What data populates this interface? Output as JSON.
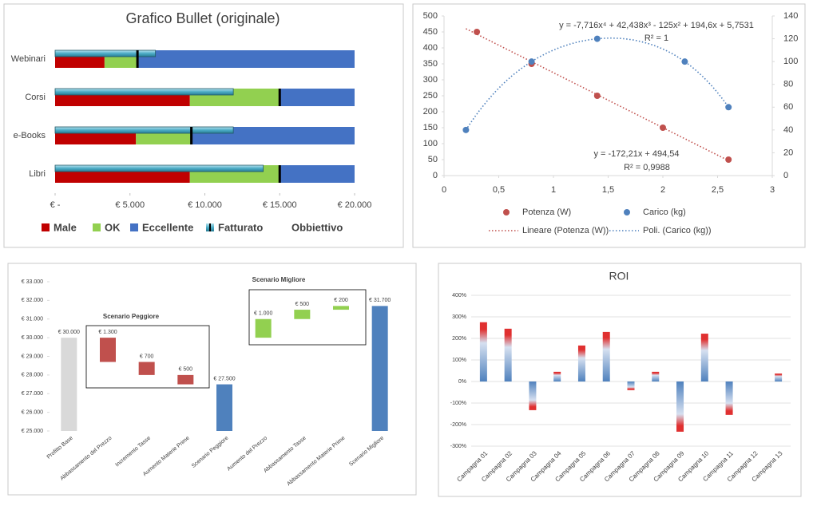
{
  "chart_data": [
    {
      "type": "bullet",
      "title": "Grafico Bullet (originale)",
      "categories": [
        "Webinari",
        "Corsi",
        "e-Books",
        "Libri"
      ],
      "series": [
        {
          "name": "Male",
          "color": "#c00000",
          "values": [
            3300,
            9000,
            5400,
            9000
          ]
        },
        {
          "name": "OK",
          "color": "#92d050",
          "values": [
            2200,
            6000,
            3700,
            6000
          ]
        },
        {
          "name": "Eccellente",
          "color": "#4472c4",
          "values": [
            14500,
            5000,
            10900,
            5000
          ]
        },
        {
          "name": "Fatturato",
          "color": "#4bacc6",
          "values": [
            6700,
            11900,
            11900,
            13900
          ]
        },
        {
          "name": "Obbiettivo",
          "color": "#000000",
          "values": [
            5500,
            15000,
            9100,
            15000
          ]
        }
      ],
      "xlim": [
        0,
        20000
      ],
      "xticks": [
        {
          "value": 0,
          "label": "€ -"
        },
        {
          "value": 5000,
          "label": "€ 5.000"
        },
        {
          "value": 10000,
          "label": "€ 10.000"
        },
        {
          "value": 15000,
          "label": "€ 15.000"
        },
        {
          "value": 20000,
          "label": "€ 20.000"
        }
      ]
    },
    {
      "type": "scatter",
      "series": [
        {
          "name": "Potenza (W)",
          "color": "#c0504d",
          "x": [
            0.3,
            0.8,
            1.4,
            2,
            2.6
          ],
          "values": [
            450,
            350,
            250,
            150,
            50
          ],
          "trendline": {
            "name": "Lineare (Potenza (W))",
            "order": 1,
            "equation": "y = -172,21x + 494,54",
            "r2": "R² = 0,9988"
          }
        },
        {
          "name": "Carico (kg)",
          "color": "#4f81bd",
          "axis": "y2",
          "x": [
            0.2,
            0.8,
            1.4,
            2.2,
            2.6
          ],
          "values": [
            40,
            100,
            120,
            100,
            60
          ],
          "trendline": {
            "name": "Poli. (Carico (kg))",
            "order": 4,
            "equation": "y = -7,716x⁴ + 42,438x³ - 125x² + 194,6x + 5,7531",
            "r2": "R² = 1"
          }
        }
      ],
      "xlim": [
        0,
        3
      ],
      "xticks": [
        0,
        {
          "value": 0.5,
          "label": "0,5"
        },
        1,
        {
          "value": 1.5,
          "label": "1,5"
        },
        2,
        {
          "value": 2.5,
          "label": "2,5"
        },
        3
      ],
      "ylim": [
        0,
        500
      ],
      "yticks": [
        0,
        50,
        100,
        150,
        200,
        250,
        300,
        350,
        400,
        450,
        500
      ],
      "y2lim": [
        0,
        140
      ],
      "y2ticks": [
        0,
        20,
        40,
        60,
        80,
        100,
        120,
        140
      ]
    },
    {
      "type": "waterfall",
      "categories": [
        "Profitto Base",
        "Abbassamento del Prezzo",
        "Incremento Tasse",
        "Aumento Materie Prime",
        "Scenario Peggiore",
        "Aumento del Prezzo",
        "Abbassamento Tasse",
        "Abbassamento Materie Prime",
        "Scenario Migliore"
      ],
      "values": [
        30000,
        -1300,
        -700,
        -500,
        27500,
        1000,
        500,
        200,
        31700
      ],
      "value_labels": [
        "€ 30.000",
        "€ 1.300",
        "€ 700",
        "€ 500",
        "€ 27.500",
        "€ 1.000",
        "€ 500",
        "€ 200",
        "€ 31.700"
      ],
      "colors": [
        "#d9d9d9",
        "#c0504d",
        "#c0504d",
        "#c0504d",
        "#4f81bd",
        "#92d050",
        "#92d050",
        "#92d050",
        "#4f81bd"
      ],
      "annotations": [
        "Scenario Peggiore",
        "Scenario Migliore"
      ],
      "ylim": [
        25000,
        33000
      ],
      "yticks": [
        {
          "value": 25000,
          "label": "€ 25.000"
        },
        {
          "value": 26000,
          "label": "€ 26.000"
        },
        {
          "value": 27000,
          "label": "€ 27.000"
        },
        {
          "value": 28000,
          "label": "€ 28.000"
        },
        {
          "value": 29000,
          "label": "€ 29.000"
        },
        {
          "value": 30000,
          "label": "€ 30.000"
        },
        {
          "value": 31000,
          "label": "€ 31.000"
        },
        {
          "value": 32000,
          "label": "€ 32.000"
        },
        {
          "value": 33000,
          "label": "€ 33.000"
        }
      ]
    },
    {
      "type": "bar",
      "title": "ROI",
      "categories": [
        "Campagna 01",
        "Campagna 02",
        "Campagna 03",
        "Campagna 04",
        "Campagna 05",
        "Campagna 06",
        "Campagna 07",
        "Campagna 08",
        "Campagna 09",
        "Campagna 10",
        "Campagna 11",
        "Campagna 12",
        "Campagna 13"
      ],
      "values": [
        275,
        245,
        -133,
        45,
        167,
        230,
        -40,
        45,
        -233,
        222,
        -155,
        0,
        37
      ],
      "color": "#4f81bd",
      "highlight_color": "#e03030",
      "ylim": [
        -300,
        400
      ],
      "yticks": [
        {
          "value": -300,
          "label": "-300%"
        },
        {
          "value": -200,
          "label": "-200%"
        },
        {
          "value": -100,
          "label": "-100%"
        },
        {
          "value": 0,
          "label": "0%"
        },
        {
          "value": 100,
          "label": "100%"
        },
        {
          "value": 200,
          "label": "200%"
        },
        {
          "value": 300,
          "label": "300%"
        },
        {
          "value": 400,
          "label": "400%"
        }
      ],
      "grid": true
    }
  ]
}
